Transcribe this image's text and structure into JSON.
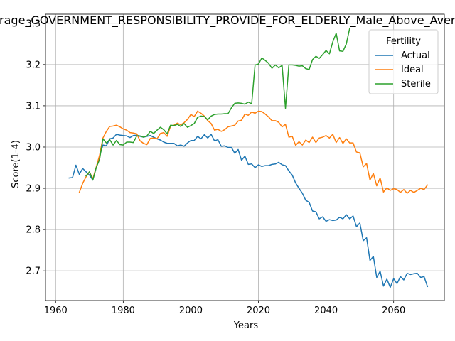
{
  "chart_data": {
    "type": "line",
    "title": "Average_GOVERNMENT_RESPONSIBILITY_PROVIDE_FOR_ELDERLY_Male_Above_Average",
    "xlabel": "Years",
    "ylabel": "Score(1-4)",
    "xlim": [
      1957,
      2075
    ],
    "ylim": [
      2.628,
      3.322
    ],
    "x_ticks": [
      1960,
      1980,
      2000,
      2020,
      2040,
      2060
    ],
    "y_ticks": [
      2.7,
      2.8,
      2.9,
      3.0,
      3.1,
      3.2,
      3.3
    ],
    "grid": true,
    "legend": {
      "title": "Fertility",
      "placement": "top-right"
    },
    "series": [
      {
        "name": "Actual",
        "color": "#1f77b4",
        "start_year": 1964,
        "values": [
          2.925,
          2.926,
          2.956,
          2.934,
          2.948,
          2.94,
          2.932,
          2.92,
          2.95,
          2.978,
          3.005,
          3.003,
          3.02,
          3.022,
          3.031,
          3.029,
          3.028,
          3.027,
          3.023,
          3.028,
          3.029,
          3.026,
          3.024,
          3.026,
          3.028,
          3.024,
          3.02,
          3.017,
          3.012,
          3.009,
          3.009,
          3.009,
          3.003,
          3.005,
          3.002,
          3.01,
          3.016,
          3.016,
          3.026,
          3.02,
          3.03,
          3.022,
          3.031,
          3.015,
          3.018,
          3.002,
          3.003,
          2.999,
          2.999,
          2.985,
          2.994,
          2.968,
          2.978,
          2.958,
          2.959,
          2.95,
          2.957,
          2.953,
          2.955,
          2.955,
          2.958,
          2.959,
          2.963,
          2.957,
          2.955,
          2.942,
          2.932,
          2.913,
          2.9,
          2.888,
          2.871,
          2.866,
          2.845,
          2.843,
          2.826,
          2.831,
          2.82,
          2.824,
          2.822,
          2.823,
          2.83,
          2.826,
          2.836,
          2.826,
          2.833,
          2.807,
          2.816,
          2.773,
          2.78,
          2.725,
          2.735,
          2.684,
          2.699,
          2.663,
          2.68,
          2.66,
          2.681,
          2.669,
          2.686,
          2.678,
          2.694,
          2.691,
          2.693,
          2.694,
          2.684,
          2.686,
          2.662
        ]
      },
      {
        "name": "Ideal",
        "color": "#ff7f0e",
        "start_year": 1967,
        "values": [
          2.89,
          2.912,
          2.928,
          2.94,
          2.923,
          2.951,
          2.98,
          3.022,
          3.038,
          3.05,
          3.051,
          3.053,
          3.049,
          3.044,
          3.041,
          3.035,
          3.034,
          3.032,
          3.015,
          3.009,
          3.006,
          3.021,
          3.022,
          3.02,
          3.033,
          3.035,
          3.026,
          3.051,
          3.053,
          3.058,
          3.054,
          3.059,
          3.067,
          3.079,
          3.074,
          3.087,
          3.082,
          3.075,
          3.064,
          3.057,
          3.041,
          3.043,
          3.038,
          3.042,
          3.049,
          3.051,
          3.053,
          3.063,
          3.065,
          3.08,
          3.077,
          3.085,
          3.082,
          3.087,
          3.086,
          3.08,
          3.073,
          3.064,
          3.064,
          3.06,
          3.049,
          3.055,
          3.024,
          3.026,
          3.004,
          3.013,
          3.005,
          3.017,
          3.011,
          3.024,
          3.011,
          3.022,
          3.024,
          3.028,
          3.022,
          3.031,
          3.011,
          3.023,
          3.009,
          3.02,
          3.01,
          3.01,
          2.988,
          2.986,
          2.952,
          2.96,
          2.92,
          2.936,
          2.906,
          2.925,
          2.891,
          2.901,
          2.895,
          2.899,
          2.897,
          2.89,
          2.897,
          2.888,
          2.895,
          2.89,
          2.895,
          2.9,
          2.897,
          2.908
        ]
      },
      {
        "name": "Sterile",
        "color": "#2ca02c",
        "start_year": 1969,
        "values": [
          2.93,
          2.94,
          2.92,
          2.95,
          2.97,
          3.02,
          3.01,
          3.018,
          3.005,
          3.016,
          3.006,
          3.005,
          3.012,
          3.012,
          3.011,
          3.027,
          3.027,
          3.024,
          3.027,
          3.038,
          3.033,
          3.041,
          3.048,
          3.042,
          3.032,
          3.053,
          3.052,
          3.055,
          3.05,
          3.057,
          3.048,
          3.052,
          3.057,
          3.072,
          3.075,
          3.074,
          3.066,
          3.075,
          3.079,
          3.08,
          3.08,
          3.081,
          3.081,
          3.095,
          3.106,
          3.107,
          3.106,
          3.104,
          3.109,
          3.105,
          3.199,
          3.201,
          3.216,
          3.21,
          3.203,
          3.191,
          3.199,
          3.192,
          3.198,
          3.094,
          3.199,
          3.199,
          3.198,
          3.196,
          3.197,
          3.19,
          3.188,
          3.212,
          3.22,
          3.215,
          3.224,
          3.234,
          3.226,
          3.255,
          3.276,
          3.233,
          3.232,
          3.25,
          3.288
        ]
      }
    ]
  }
}
